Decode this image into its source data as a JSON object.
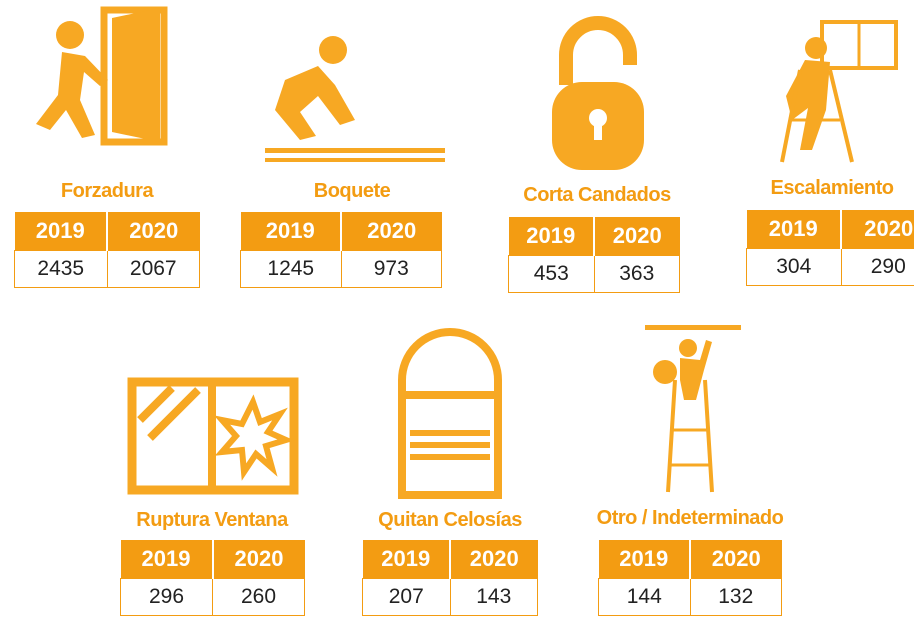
{
  "items": [
    {
      "label": "Forzadura",
      "headers": [
        "2019",
        "2020"
      ],
      "values": [
        "2435",
        "2067"
      ]
    },
    {
      "label": "Boquete",
      "headers": [
        "2019",
        "2020"
      ],
      "values": [
        "1245",
        "973"
      ]
    },
    {
      "label": "Corta Candados",
      "headers": [
        "2019",
        "2020"
      ],
      "values": [
        "453",
        "363"
      ]
    },
    {
      "label": "Escalamiento",
      "headers": [
        "2019",
        "2020"
      ],
      "values": [
        "304",
        "290"
      ]
    },
    {
      "label": "Ruptura Ventana",
      "headers": [
        "2019",
        "2020"
      ],
      "values": [
        "296",
        "260"
      ]
    },
    {
      "label": "Quitan Celosías",
      "headers": [
        "2019",
        "2020"
      ],
      "values": [
        "207",
        "143"
      ]
    },
    {
      "label": "Otro / Indeterminado",
      "headers": [
        "2019",
        "2020"
      ],
      "values": [
        "144",
        "132"
      ]
    }
  ]
}
